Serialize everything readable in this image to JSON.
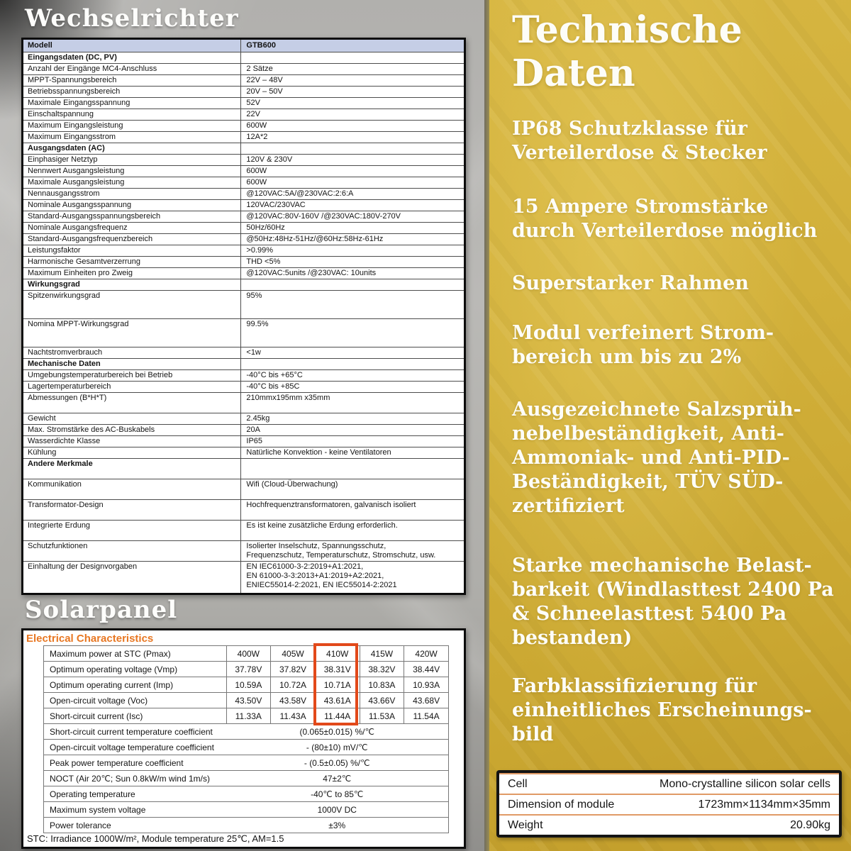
{
  "colors": {
    "panel_yellow": "#d2b03a",
    "header_blue": "#c5cee6",
    "accent_orange": "#e87722",
    "highlight_red": "#e2491a"
  },
  "left": {
    "inverter_title": "Wechselrichter",
    "solar_title": "Solarpanel",
    "inverter_table": {
      "rows": [
        {
          "label": "Modell",
          "value": "GTB600",
          "type": "header"
        },
        {
          "label": "Eingangsdaten (DC, PV)",
          "value": "",
          "type": "section"
        },
        {
          "label": "Anzahl der Eingänge MC4-Anschluss",
          "value": "2 Sätze"
        },
        {
          "label": "MPPT-Spannungsbereich",
          "value": "22V – 48V"
        },
        {
          "label": "Betriebsspannungsbereich",
          "value": "20V – 50V"
        },
        {
          "label": "Maximale Eingangsspannung",
          "value": "52V"
        },
        {
          "label": "Einschaltspannung",
          "value": "22V"
        },
        {
          "label": "Maximum Eingangsleistung",
          "value": "600W"
        },
        {
          "label": "Maximum Eingangsstrom",
          "value": "12A*2"
        },
        {
          "label": "Ausgangsdaten (AC)",
          "value": "",
          "type": "section"
        },
        {
          "label": "Einphasiger Netztyp",
          "value": "120V & 230V"
        },
        {
          "label": "Nennwert Ausgangsleistung",
          "value": "600W"
        },
        {
          "label": "Maximale Ausgangsleistung",
          "value": "600W"
        },
        {
          "label": "Nennausgangsstrom",
          "value": "@120VAC:5A/@230VAC:2:6:A"
        },
        {
          "label": "Nominale Ausgangsspannung",
          "value": "120VAC/230VAC"
        },
        {
          "label": "Standard-Ausgangsspannungsbereich",
          "value": "@120VAC:80V-160V /@230VAC:180V-270V"
        },
        {
          "label": "Nominale Ausgangsfrequenz",
          "value": "50Hz/60Hz"
        },
        {
          "label": "Standard-Ausgangsfrequenzbereich",
          "value": "@50Hz:48Hz-51Hz/@60Hz:58Hz-61Hz"
        },
        {
          "label": "Leistungsfaktor",
          "value": ">0.99%"
        },
        {
          "label": "Harmonische Gesamtverzerrung",
          "value": "THD <5%"
        },
        {
          "label": "Maximum Einheiten pro Zweig",
          "value": "@120VAC:5units /@230VAC: 10units"
        },
        {
          "label": "Wirkungsgrad",
          "value": "",
          "type": "section"
        },
        {
          "label": "Spitzenwirkungsgrad",
          "value": "95%",
          "h": "l"
        },
        {
          "label": "Nomina MPPT-Wirkungsgrad",
          "value": "99.5%",
          "h": "l"
        },
        {
          "label": "Nachtstromverbrauch",
          "value": "<1w"
        },
        {
          "label": "Mechanische Daten",
          "value": "",
          "type": "section"
        },
        {
          "label": "Umgebungstemperaturbereich bei Betrieb",
          "value": "-40°C bis +65°C"
        },
        {
          "label": "Lagertemperaturbereich",
          "value": "-40°C bis +85C"
        },
        {
          "label": "Abmessungen (B*H*T)",
          "value": "210mmx195mm x35mm",
          "h": "m"
        },
        {
          "label": "Gewicht",
          "value": "2.45kg"
        },
        {
          "label": "Max. Stromstärke des AC-Buskabels",
          "value": "20A"
        },
        {
          "label": "Wasserdichte Klasse",
          "value": "IP65"
        },
        {
          "label": "Kühlung",
          "value": "Natürliche Konvektion - keine Ventilatoren"
        },
        {
          "label": "Andere Merkmale",
          "value": "",
          "type": "section",
          "h": "m"
        },
        {
          "label": "Kommunikation",
          "value": "Wifi (Cloud-Überwachung)",
          "h": "m"
        },
        {
          "label": "Transformator-Design",
          "value": "Hochfrequenztransformatoren, galvanisch isoliert",
          "h": "m"
        },
        {
          "label": "Integrierte Erdung",
          "value": "Es ist keine zusätzliche Erdung erforderlich.",
          "h": "m"
        },
        {
          "label": "Schutzfunktionen",
          "value": "Isolierter Inselschutz, Spannungsschutz,\nFrequenzschutz, Temperaturschutz, Stromschutz, usw.",
          "h": "m"
        },
        {
          "label": "Einhaltung der Designvorgaben",
          "value": "EN IEC61000-3-2:2019+A1:2021,\nEN 61000-3-3:2013+A1:2019+A2:2021,\nENIEC55014-2:2021, EN IEC55014-2:2021",
          "h": "xl"
        }
      ]
    },
    "solar_table": {
      "heading": "Electrical Characteristics",
      "highlighted_column": "410W",
      "main_rows": [
        {
          "label": "Maximum power at STC (Pmax)",
          "v0": "400W",
          "v1": "405W",
          "v2": "410W",
          "v3": "415W",
          "v4": "420W"
        },
        {
          "label": "Optimum operating voltage (Vmp)",
          "v0": "37.78V",
          "v1": "37.82V",
          "v2": "38.31V",
          "v3": "38.32V",
          "v4": "38.44V"
        },
        {
          "label": "Optimum operating current (Imp)",
          "v0": "10.59A",
          "v1": "10.72A",
          "v2": "10.71A",
          "v3": "10.83A",
          "v4": "10.93A"
        },
        {
          "label": "Open-circuit voltage (Voc)",
          "v0": "43.50V",
          "v1": "43.58V",
          "v2": "43.61A",
          "v3": "43.66V",
          "v4": "43.68V"
        },
        {
          "label": "Short-circuit current (Isc)",
          "v0": "11.33A",
          "v1": "11.43A",
          "v2": "11.44A",
          "v3": "11.53A",
          "v4": "11.54A"
        }
      ],
      "span_rows": [
        {
          "label": "Short-circuit current temperature coefficient",
          "value": "(0.065±0.015) %/℃"
        },
        {
          "label": "Open-circuit voltage temperature coefficient",
          "value": "- (80±10) mV/℃"
        },
        {
          "label": "Peak power temperature coefficient",
          "value": "- (0.5±0.05) %/℃"
        },
        {
          "label": "NOCT (Air 20℃; Sun 0.8kW/m wind 1m/s)",
          "value": "47±2℃"
        },
        {
          "label": "Operating temperature",
          "value": "-40℃  to 85℃"
        },
        {
          "label": "Maximum system voltage",
          "value": "1000V DC"
        },
        {
          "label": "Power tolerance",
          "value": "±3%"
        }
      ],
      "footnote": "STC: Irradiance 1000W/m²,  Module temperature 25℃,  AM=1.5"
    }
  },
  "right": {
    "heading": "Technische\nDaten",
    "bullets": [
      "IP68 Schutzklasse für\nVerteilerdose & Stecker",
      "15 Ampere Stromstärke\ndurch Verteilerdose möglich",
      "Superstarker Rahmen",
      "Modul verfeinert Strom-\nbereich um bis zu 2%",
      "Ausgezeichnete Salzsprüh-\nnebelbeständigkeit, Anti-\nAmmoniak- und Anti-PID-\nBeständigkeit, TÜV SÜD-\nzertifiziert",
      "Starke mechanische Belast-\nbarkeit (Windlasttest 2400 Pa\n& Schneelasttest 5400 Pa\nbestanden)",
      "Farbklassifizierung für\neinheitliches Erscheinungs-\nbild"
    ],
    "module_table": {
      "rows": [
        {
          "label": "Cell",
          "value": "Mono-crystalline silicon solar cells"
        },
        {
          "label": "Dimension of module",
          "value": "1723mm×1134mm×35mm"
        },
        {
          "label": "Weight",
          "value": "20.90kg"
        }
      ]
    }
  }
}
